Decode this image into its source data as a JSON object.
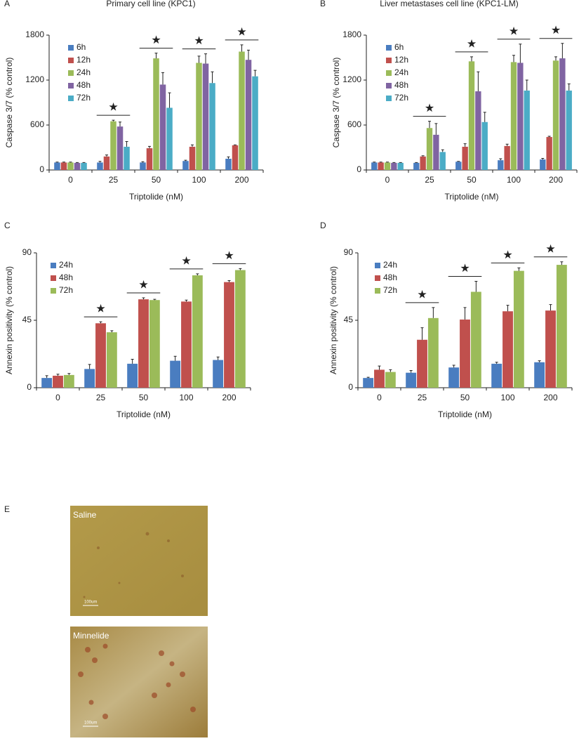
{
  "chart_data": [
    {
      "type": "bar",
      "panel": "A",
      "title": "Primary cell line (KPC1)",
      "y_label": "Caspase 3/7 (% control)",
      "x_label": "Triptolide (nM)",
      "categories": [
        "0",
        "25",
        "50",
        "100",
        "200"
      ],
      "ylim": [
        0,
        1800
      ],
      "yticks": [
        0,
        600,
        1200,
        1800
      ],
      "annotations": [
        null,
        "★",
        "★",
        "★",
        "★"
      ],
      "series": [
        {
          "name": "6h",
          "color": "#4a7dc0",
          "values": [
            100,
            100,
            100,
            120,
            150
          ],
          "errors": [
            5,
            15,
            10,
            10,
            25
          ]
        },
        {
          "name": "12h",
          "color": "#c0504d",
          "values": [
            100,
            180,
            290,
            310,
            330
          ],
          "errors": [
            5,
            20,
            25,
            25,
            5
          ]
        },
        {
          "name": "24h",
          "color": "#9bbb59",
          "values": [
            100,
            650,
            1490,
            1430,
            1580
          ],
          "errors": [
            5,
            15,
            70,
            90,
            90
          ]
        },
        {
          "name": "48h",
          "color": "#8064a2",
          "values": [
            95,
            580,
            1140,
            1420,
            1470
          ],
          "errors": [
            5,
            60,
            160,
            130,
            130
          ]
        },
        {
          "name": "72h",
          "color": "#4bacc6",
          "values": [
            95,
            310,
            830,
            1160,
            1250
          ],
          "errors": [
            5,
            70,
            200,
            150,
            80
          ]
        }
      ]
    },
    {
      "type": "bar",
      "panel": "B",
      "title": "Liver metastases cell line (KPC1-LM)",
      "y_label": "Caspase 3/7 (% control)",
      "x_label": "Triptolide (nM)",
      "categories": [
        "0",
        "25",
        "50",
        "100",
        "200"
      ],
      "ylim": [
        0,
        1800
      ],
      "yticks": [
        0,
        600,
        1200,
        1800
      ],
      "annotations": [
        null,
        "★",
        "★",
        "★",
        "★"
      ],
      "series": [
        {
          "name": "6h",
          "color": "#4a7dc0",
          "values": [
            100,
            95,
            110,
            130,
            140
          ],
          "errors": [
            5,
            5,
            5,
            20,
            15
          ]
        },
        {
          "name": "12h",
          "color": "#c0504d",
          "values": [
            100,
            180,
            310,
            320,
            440
          ],
          "errors": [
            5,
            10,
            40,
            25,
            10
          ]
        },
        {
          "name": "24h",
          "color": "#9bbb59",
          "values": [
            100,
            560,
            1450,
            1440,
            1460
          ],
          "errors": [
            5,
            90,
            60,
            90,
            50
          ]
        },
        {
          "name": "48h",
          "color": "#8064a2",
          "values": [
            95,
            470,
            1050,
            1430,
            1490
          ],
          "errors": [
            5,
            150,
            260,
            250,
            200
          ]
        },
        {
          "name": "72h",
          "color": "#4bacc6",
          "values": [
            95,
            240,
            640,
            1060,
            1060
          ],
          "errors": [
            5,
            30,
            130,
            140,
            90
          ]
        }
      ]
    },
    {
      "type": "bar",
      "panel": "C",
      "y_label": "Annexin positivity (% control)",
      "x_label": "Triptolide (nM)",
      "categories": [
        "0",
        "25",
        "50",
        "100",
        "200"
      ],
      "ylim": [
        0,
        90
      ],
      "yticks": [
        0,
        45,
        90
      ],
      "annotations": [
        null,
        "★",
        "★",
        "★",
        "★"
      ],
      "series": [
        {
          "name": "24h",
          "color": "#4a7dc0",
          "values": [
            6.5,
            12.5,
            16,
            18,
            18.5
          ],
          "errors": [
            1.5,
            3,
            3,
            3,
            2
          ]
        },
        {
          "name": "48h",
          "color": "#c0504d",
          "values": [
            8,
            43,
            59,
            57.5,
            70.5
          ],
          "errors": [
            1,
            1,
            1,
            1,
            1
          ]
        },
        {
          "name": "72h",
          "color": "#9bbb59",
          "values": [
            8.5,
            37,
            58.5,
            75,
            78.5
          ],
          "errors": [
            1,
            1,
            0.5,
            1,
            1
          ]
        }
      ]
    },
    {
      "type": "bar",
      "panel": "D",
      "y_label": "Annexin positivity (% control)",
      "x_label": "Triptolide (nM)",
      "categories": [
        "0",
        "25",
        "50",
        "100",
        "200"
      ],
      "ylim": [
        0,
        90
      ],
      "yticks": [
        0,
        45,
        90
      ],
      "annotations": [
        null,
        "★",
        "★",
        "★",
        "★"
      ],
      "series": [
        {
          "name": "24h",
          "color": "#4a7dc0",
          "values": [
            6.5,
            10,
            13.5,
            16,
            17
          ],
          "errors": [
            0.5,
            1.5,
            1.5,
            1,
            1
          ]
        },
        {
          "name": "48h",
          "color": "#c0504d",
          "values": [
            12,
            32,
            45.5,
            51,
            51.5
          ],
          "errors": [
            2.5,
            8,
            8,
            4,
            4
          ]
        },
        {
          "name": "72h",
          "color": "#9bbb59",
          "values": [
            10.5,
            46.5,
            64,
            78,
            82
          ],
          "errors": [
            1.5,
            7,
            7,
            2,
            2
          ]
        }
      ]
    }
  ],
  "panel_e": {
    "label": "E",
    "images": [
      {
        "label": "Saline",
        "scale": "100um"
      },
      {
        "label": "Minnelide",
        "scale": "100um"
      }
    ]
  }
}
